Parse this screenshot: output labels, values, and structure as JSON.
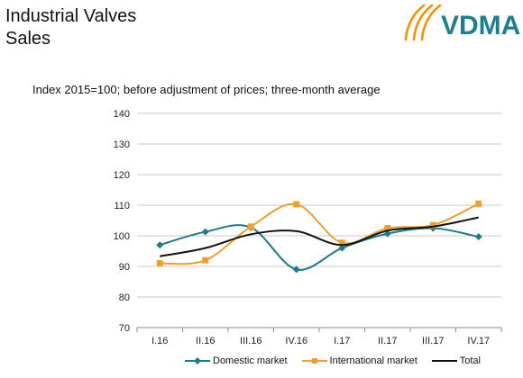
{
  "header": {
    "title_line1": "Industrial Valves",
    "title_line2": "Sales",
    "logo_text": "VDMA"
  },
  "colors": {
    "domestic": "#1f7a8c",
    "international": "#f0a02a",
    "total": "#111111",
    "logo_orange": "#f39200",
    "logo_text": "#1a7f8e",
    "grid": "#c8c8c8"
  },
  "chart_data": {
    "type": "line",
    "title": "Index 2015=100; before adjustment of prices; three-month average",
    "categories": [
      "I.16",
      "II.16",
      "III.16",
      "IV.16",
      "I.17",
      "II.17",
      "III.17",
      "IV.17"
    ],
    "series": [
      {
        "name": "Domestic market",
        "values": [
          97,
          101.3,
          102.7,
          89,
          96,
          100.7,
          102.5,
          99.7
        ],
        "marker": "diamond"
      },
      {
        "name": "International market",
        "values": [
          91,
          92,
          103,
          110.3,
          97.7,
          102.5,
          103.5,
          110.5
        ],
        "marker": "square"
      },
      {
        "name": "Total",
        "values": [
          93.3,
          96,
          100.5,
          101.5,
          97,
          101.7,
          103,
          106
        ],
        "marker": "none"
      }
    ],
    "ylim": [
      70,
      140
    ],
    "yticks": [
      70,
      80,
      90,
      100,
      110,
      120,
      130,
      140
    ],
    "grid": "horizontal",
    "legend": "bottom",
    "xlabel": "",
    "ylabel": ""
  }
}
